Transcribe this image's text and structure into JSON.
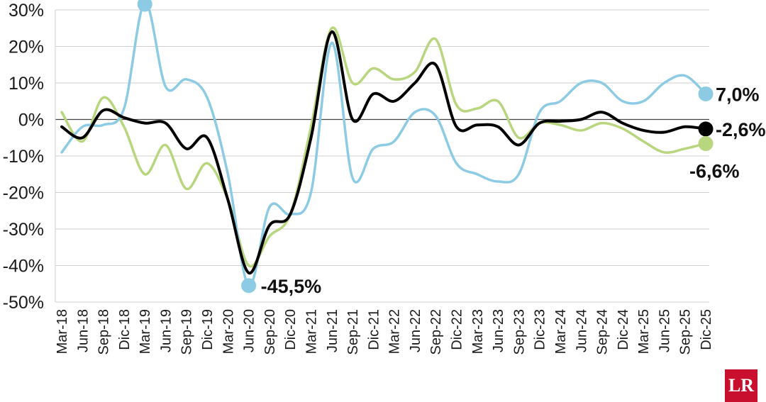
{
  "chart_data": {
    "type": "line",
    "title": "",
    "xlabel": "",
    "ylabel": "",
    "ylim": [
      -50,
      30
    ],
    "yticks": [
      30,
      20,
      10,
      0,
      -10,
      -20,
      -30,
      -40,
      -50
    ],
    "ytick_labels": [
      "30%",
      "20%",
      "10%",
      "0%",
      "-10%",
      "-20%",
      "-30%",
      "-40%",
      "-50%"
    ],
    "grid": true,
    "legend": "none",
    "x_labels": [
      "Mar-18",
      "Jun-18",
      "Sep-18",
      "Dic-18",
      "Mar-19",
      "Jun-19",
      "Sep-19",
      "Dic-19",
      "Mar-20",
      "Jun-20",
      "Sep-20",
      "Dic-20",
      "Mar-21",
      "Jun-21",
      "Sep-21",
      "Dic-21",
      "Mar-22",
      "Jun-22",
      "Sep-22",
      "Dic-22",
      "Mar-23",
      "Jun-23",
      "Sep-23",
      "Dic-23",
      "Mar-24",
      "Jun-24",
      "Sep-24",
      "Dic-24",
      "Mar-25",
      "Jun-25",
      "Sep-25",
      "Dic-25"
    ],
    "series": [
      {
        "color": "#000000",
        "values": [
          -2,
          -5,
          2.5,
          0.5,
          -1,
          -1,
          -8,
          -5,
          -22,
          -42,
          -29,
          -26,
          -5,
          24,
          0,
          7,
          5,
          10,
          15,
          -2,
          -1.5,
          -2,
          -7,
          -1,
          -0.5,
          0,
          2,
          -1,
          -3,
          -3.5,
          -2,
          -2.6
        ],
        "end_label": "-2,6%"
      },
      {
        "color": "#b8d67e",
        "values": [
          2,
          -6,
          6,
          -2,
          -15,
          -7,
          -19,
          -12,
          -22,
          -40,
          -32,
          -26,
          -2,
          25,
          10,
          14,
          11,
          13,
          22,
          4,
          3,
          5,
          -5,
          -1,
          -1.5,
          -3,
          -1,
          -2.5,
          -6,
          -9,
          -8,
          -6.6
        ],
        "end_label": "-6,6%"
      },
      {
        "color": "#8ccbe3",
        "values": [
          -9,
          -2,
          -1.5,
          3,
          32,
          9,
          11,
          6,
          -15,
          -45.5,
          -24,
          -26,
          -20,
          21,
          -16,
          -8,
          -6,
          2,
          1,
          -12,
          -15,
          -17,
          -15,
          2,
          5,
          10,
          10,
          5,
          5,
          10,
          12,
          7
        ],
        "end_label": "7,0%",
        "min_label": "-45,5%"
      }
    ]
  }
}
